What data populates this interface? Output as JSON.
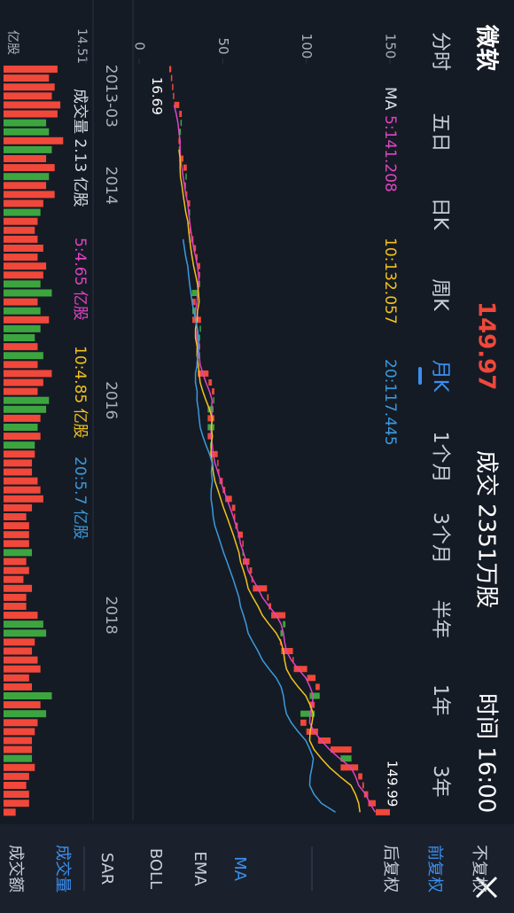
{
  "header": {
    "name": "微软",
    "price": 149.97,
    "volume": "成交 2351万股",
    "time": "时间 16:00"
  },
  "tabs": [
    {
      "label": "分时"
    },
    {
      "label": "五日"
    },
    {
      "label": "日K"
    },
    {
      "label": "周K"
    },
    {
      "label": "月K",
      "active": true
    },
    {
      "label": "1个月"
    },
    {
      "label": "3个月"
    },
    {
      "label": "半年"
    },
    {
      "label": "1年"
    },
    {
      "label": "3年"
    }
  ],
  "options": [
    {
      "label": "不复权"
    },
    {
      "label": "前复权",
      "active": true
    },
    {
      "label": "后复权"
    },
    {
      "label": "MA",
      "active": true
    },
    {
      "label": "EMA"
    },
    {
      "label": "BOLL"
    },
    {
      "label": "SAR"
    },
    {
      "label": "成交量",
      "active": true
    },
    {
      "label": "成交额"
    }
  ],
  "chart_data": [
    {
      "type": "candlestick",
      "up_color": "#f0483a",
      "down_color": "#3da53f",
      "ylim": [
        0,
        150
      ],
      "yticks": [
        0,
        50,
        100,
        150
      ],
      "high_label": 149.99,
      "low_label": 16.69,
      "ma_title": "MA",
      "categories": [
        null,
        null,
        null,
        "2013-03",
        null,
        null,
        null,
        null,
        null,
        null,
        null,
        null,
        null,
        "2014",
        null,
        null,
        null,
        null,
        null,
        null,
        null,
        null,
        null,
        null,
        null,
        null,
        null,
        null,
        null,
        null,
        null,
        null,
        null,
        null,
        null,
        null,
        null,
        "2016",
        null,
        null,
        null,
        null,
        null,
        null,
        null,
        null,
        null,
        null,
        null,
        null,
        null,
        null,
        null,
        null,
        null,
        null,
        null,
        null,
        null,
        null,
        null,
        "2018",
        null,
        null,
        null,
        null,
        null,
        null,
        null,
        null,
        null,
        null,
        null,
        null,
        null,
        null,
        null,
        null,
        null,
        null,
        null,
        null,
        null,
        null
      ],
      "open": [
        18.0,
        19.2,
        19.8,
        20.5,
        21.0,
        24.0,
        25.5,
        25.0,
        23.5,
        24.5,
        24.0,
        26.5,
        28.5,
        28.0,
        28.0,
        28.8,
        30.5,
        30.0,
        30.5,
        31.0,
        32.5,
        34.0,
        35.0,
        36.5,
        36.5,
        35.0,
        31.5,
        33.8,
        31.8,
        37.0,
        36.5,
        34.5,
        36.5,
        34.8,
        35.0,
        41.5,
        43.5,
        45.0,
        44.5,
        41.0,
        45.0,
        41.0,
        43.5,
        42.5,
        47.0,
        47.5,
        48.0,
        50.0,
        51.5,
        55.5,
        57.5,
        57.5,
        59.0,
        62.0,
        62.5,
        62.0,
        66.0,
        67.5,
        68.0,
        76.5,
        77.5,
        79.0,
        87.5,
        86.0,
        84.5,
        85.0,
        92.0,
        92.5,
        100.5,
        105.5,
        108.0,
        102.0,
        105.0,
        96.5,
        100.0,
        107.0,
        114.5,
        127.0,
        120.5,
        131.0,
        133.5,
        134.5,
        137.0,
        141.5
      ],
      "close": [
        19.2,
        19.8,
        20.5,
        21.0,
        24.0,
        25.5,
        25.0,
        23.5,
        24.5,
        24.0,
        26.5,
        28.5,
        28.0,
        28.0,
        28.8,
        30.5,
        30.0,
        30.5,
        31.0,
        32.5,
        34.0,
        35.0,
        36.5,
        36.5,
        35.0,
        31.5,
        33.8,
        31.8,
        37.0,
        36.5,
        34.5,
        36.5,
        34.8,
        35.0,
        41.5,
        43.5,
        45.0,
        44.5,
        41.0,
        45.0,
        41.0,
        43.5,
        42.5,
        47.0,
        47.5,
        48.0,
        50.0,
        51.5,
        55.5,
        57.5,
        57.5,
        59.0,
        62.0,
        62.5,
        62.0,
        66.0,
        67.5,
        68.0,
        76.5,
        77.5,
        79.0,
        87.5,
        86.0,
        84.5,
        85.0,
        92.0,
        92.5,
        100.5,
        105.5,
        108.0,
        102.0,
        105.0,
        96.5,
        100.0,
        107.0,
        114.5,
        127.0,
        120.5,
        131.0,
        133.5,
        134.5,
        137.0,
        141.5,
        149.97
      ],
      "series": [
        {
          "name": "5:141.208",
          "color": "#e044c4",
          "values": [
            null,
            null,
            null,
            null,
            20.9,
            22.2,
            23.2,
            23.8,
            24.5,
            24.5,
            24.7,
            25.6,
            26.3,
            27.1,
            27.9,
            29.1,
            29.6,
            30.2,
            30.9,
            31.7,
            32.6,
            33.8,
            34.9,
            35.5,
            35.9,
            34.9,
            34.7,
            33.7,
            33.7,
            34.7,
            34.6,
            35.4,
            35.9,
            36.5,
            38.1,
            40.0,
            42.1,
            43.7,
            43.2,
            43.8,
            43.1,
            43.0,
            43.8,
            44.3,
            45.3,
            47.1,
            48.8,
            50.5,
            52.5,
            54.4,
            56.3,
            58.0,
            59.7,
            60.6,
            62.4,
            64.0,
            65.2,
            68.0,
            71.1,
            73.7,
            77.7,
            82.0,
            84.9,
            86.3,
            87.0,
            88.1,
            91.0,
            95.1,
            99.7,
            102.2,
            104.2,
            103.4,
            102.3,
            102.0,
            104.6,
            109.0,
            113.9,
            120.0,
            126.7,
            129.4,
            131.3,
            135.5,
            138.0,
            141.208
          ]
        },
        {
          "name": "10:132.057",
          "color": "#f2c31c",
          "values": [
            null,
            null,
            null,
            null,
            null,
            null,
            null,
            null,
            null,
            23.8,
            24.5,
            24.5,
            24.7,
            25.6,
            26.3,
            27.1,
            27.9,
            29.1,
            29.6,
            30.2,
            30.9,
            31.7,
            32.6,
            33.8,
            34.9,
            35.5,
            35.9,
            34.9,
            34.7,
            33.7,
            33.7,
            34.7,
            34.6,
            35.4,
            35.9,
            36.5,
            38.1,
            40.0,
            42.1,
            43.7,
            43.2,
            43.8,
            43.1,
            43.0,
            43.8,
            44.3,
            45.3,
            47.1,
            48.8,
            50.5,
            52.5,
            54.4,
            56.3,
            58.0,
            59.7,
            60.6,
            62.4,
            64.0,
            65.2,
            68.0,
            71.1,
            73.7,
            77.7,
            82.0,
            84.9,
            86.3,
            87.0,
            88.1,
            91.0,
            95.1,
            99.7,
            102.2,
            104.2,
            103.4,
            102.3,
            102.0,
            104.6,
            109.0,
            113.9,
            120.0,
            126.7,
            129.4,
            131.3,
            132.057
          ]
        },
        {
          "name": "20:117.445",
          "color": "#3b9ade",
          "values": [
            null,
            null,
            null,
            null,
            null,
            null,
            null,
            null,
            null,
            null,
            null,
            null,
            null,
            null,
            null,
            null,
            null,
            null,
            null,
            26.3,
            27.1,
            27.9,
            29.1,
            29.6,
            30.2,
            30.9,
            31.7,
            32.6,
            33.8,
            34.9,
            35.5,
            35.9,
            34.9,
            34.7,
            33.7,
            33.7,
            34.7,
            34.6,
            35.4,
            35.9,
            36.5,
            38.1,
            40.0,
            42.1,
            43.7,
            43.2,
            43.8,
            43.1,
            43.0,
            43.8,
            44.3,
            45.3,
            47.1,
            48.8,
            50.5,
            52.5,
            54.4,
            56.3,
            58.0,
            59.7,
            60.6,
            62.4,
            64.0,
            65.2,
            68.0,
            71.1,
            73.7,
            77.7,
            82.0,
            84.9,
            86.3,
            87.0,
            88.1,
            91.0,
            95.1,
            99.7,
            102.2,
            104.2,
            103.4,
            102.3,
            102.0,
            104.6,
            109.0,
            117.445
          ]
        }
      ]
    },
    {
      "type": "bar",
      "ylim": [
        0,
        14.51
      ],
      "yticks": [
        14.51
      ],
      "unit": "亿股",
      "legend": [
        {
          "label": "成交量 2.13 亿股",
          "color": "#d8dce4"
        },
        {
          "label": "5:4.65 亿股",
          "color": "#e044c4"
        },
        {
          "label": "10:4.85 亿股",
          "color": "#f2c31c"
        },
        {
          "label": "20:5.7 亿股",
          "color": "#3b9ade"
        }
      ],
      "values": [
        9.5,
        8.0,
        9.0,
        8.5,
        10.0,
        9.5,
        7.5,
        8.0,
        10.5,
        8.5,
        7.5,
        9.0,
        8.0,
        7.5,
        9.0,
        7.0,
        6.5,
        6.0,
        5.5,
        6.0,
        7.0,
        6.0,
        7.5,
        7.0,
        6.5,
        8.5,
        6.0,
        6.5,
        8.0,
        6.5,
        5.5,
        6.0,
        7.0,
        6.0,
        8.5,
        7.0,
        6.0,
        8.0,
        7.5,
        6.5,
        6.0,
        6.5,
        5.5,
        5.5,
        5.0,
        5.0,
        6.0,
        6.5,
        7.0,
        5.0,
        4.0,
        4.5,
        4.5,
        4.5,
        5.0,
        4.0,
        4.5,
        3.5,
        5.0,
        4.0,
        4.0,
        6.0,
        7.0,
        7.5,
        5.5,
        5.0,
        6.0,
        6.5,
        4.5,
        5.0,
        8.5,
        6.5,
        7.5,
        6.0,
        5.5,
        5.0,
        5.0,
        5.0,
        5.5,
        4.5,
        4.0,
        4.5,
        4.5,
        2.13
      ]
    }
  ]
}
